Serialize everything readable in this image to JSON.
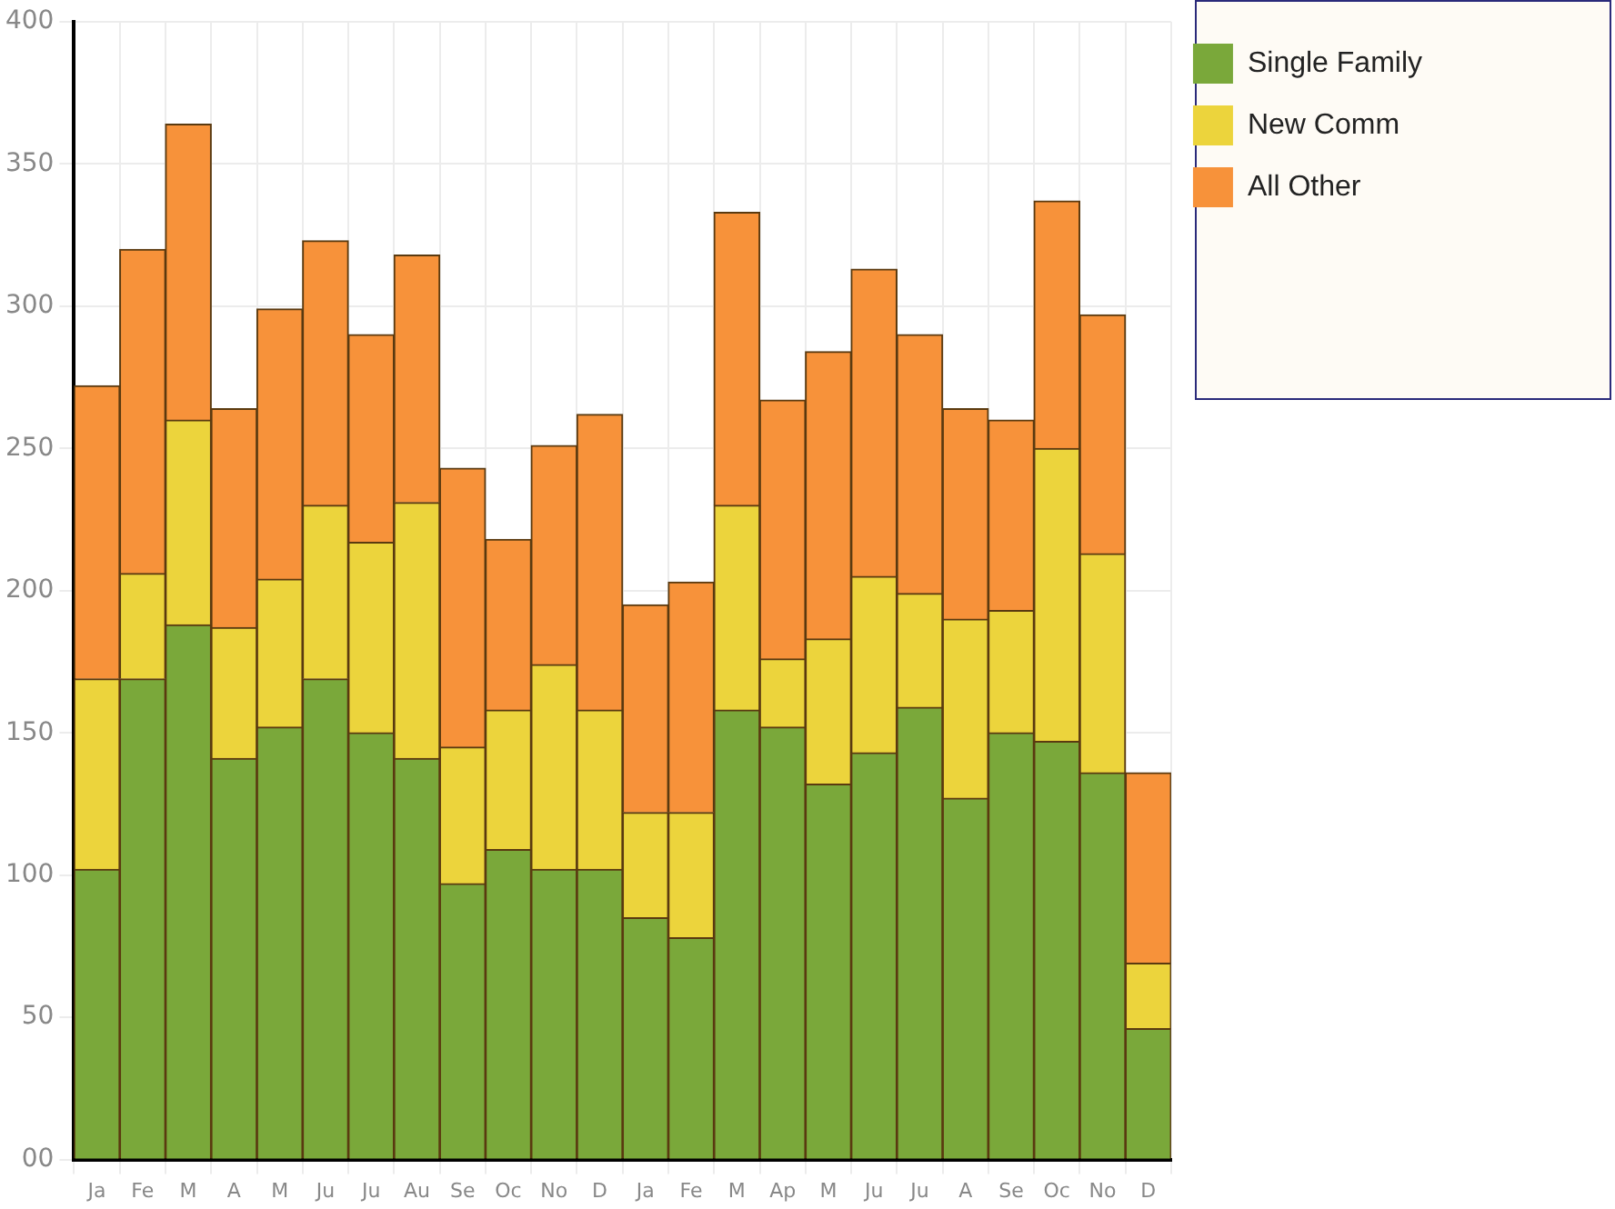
{
  "chart_data": {
    "type": "bar",
    "stacked": true,
    "categories": [
      "Ja",
      "Fe",
      "M",
      "A",
      "M",
      "Ju",
      "Ju",
      "Au",
      "Se",
      "Oc",
      "No",
      "D",
      "Ja",
      "Fe",
      "M",
      "Ap",
      "M",
      "Ju",
      "Ju",
      "A",
      "Se",
      "Oc",
      "No",
      "D"
    ],
    "series": [
      {
        "name": "Single Family",
        "color": "#7aa83a",
        "values": [
          102,
          169,
          188,
          141,
          152,
          169,
          150,
          141,
          97,
          109,
          102,
          102,
          85,
          78,
          158,
          152,
          132,
          143,
          159,
          127,
          150,
          147,
          136,
          46
        ]
      },
      {
        "name": "New Comm",
        "color": "#ecd43c",
        "values": [
          67,
          37,
          72,
          46,
          52,
          61,
          67,
          90,
          48,
          49,
          72,
          56,
          37,
          44,
          72,
          24,
          51,
          62,
          40,
          63,
          43,
          103,
          77,
          23
        ]
      },
      {
        "name": "All Other",
        "color": "#f7923a",
        "values": [
          103,
          114,
          104,
          77,
          95,
          93,
          73,
          87,
          98,
          60,
          77,
          104,
          73,
          81,
          103,
          91,
          101,
          108,
          91,
          74,
          67,
          87,
          84,
          67
        ]
      }
    ],
    "ylim": [
      0,
      400
    ],
    "yticks": [
      {
        "value": 0,
        "label": "00"
      },
      50,
      100,
      150,
      200,
      250,
      300,
      350,
      400
    ],
    "grid": true,
    "legend": "top right"
  }
}
